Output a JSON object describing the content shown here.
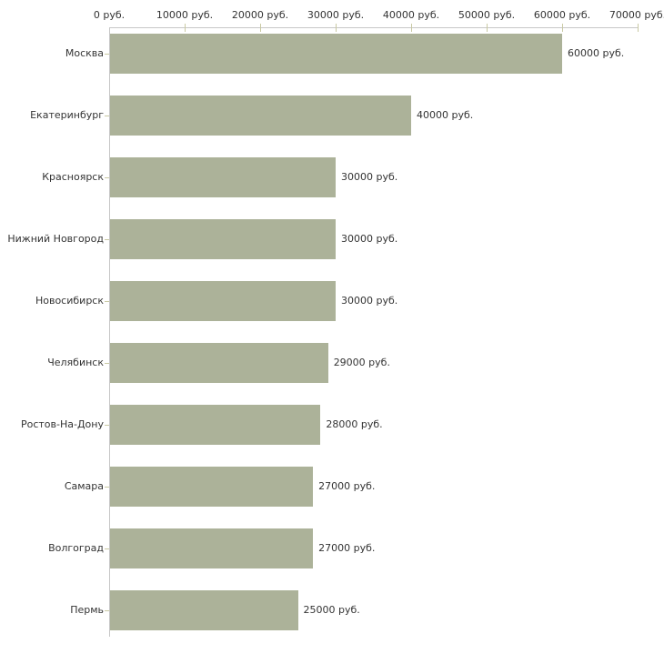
{
  "chart_data": {
    "type": "bar",
    "orientation": "horizontal",
    "title": "",
    "xlabel": "",
    "ylabel": "",
    "unit": "руб.",
    "categories": [
      "Москва",
      "Екатеринбург",
      "Красноярск",
      "Нижний Новгород",
      "Новосибирск",
      "Челябинск",
      "Ростов-На-Дону",
      "Самара",
      "Волгоград",
      "Пермь"
    ],
    "values": [
      60000,
      40000,
      30000,
      30000,
      30000,
      29000,
      28000,
      27000,
      27000,
      25000
    ],
    "value_labels": [
      "60000 руб.",
      "40000 руб.",
      "30000 руб.",
      "30000 руб.",
      "30000 руб.",
      "29000 руб.",
      "28000 руб.",
      "27000 руб.",
      "27000 руб.",
      "25000 руб."
    ],
    "x_tick_values": [
      0,
      10000,
      20000,
      30000,
      40000,
      50000,
      60000,
      70000
    ],
    "x_tick_labels": [
      "0 руб.",
      "10000 руб.",
      "20000 руб.",
      "30000 руб.",
      "40000 руб.",
      "50000 руб.",
      "60000 руб.",
      "70000 руб."
    ],
    "xlim": [
      0,
      70000
    ],
    "axis_position": "top",
    "grid": false,
    "legend_position": "none",
    "colors": {
      "bar": "#acb299",
      "axis_line": "#c7c7c7",
      "tick_mark": "#c9c9a3",
      "text": "#333333",
      "background": "#ffffff"
    }
  }
}
